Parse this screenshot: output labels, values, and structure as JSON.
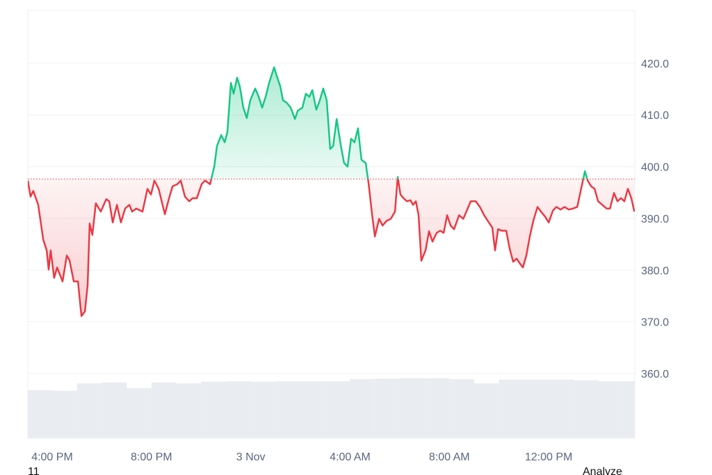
{
  "chart_data": {
    "type": "area",
    "x": [
      15.02,
      15.13,
      15.24,
      15.44,
      15.64,
      15.78,
      15.86,
      15.94,
      16.08,
      16.2,
      16.42,
      16.59,
      16.7,
      16.87,
      17.04,
      17.18,
      17.32,
      17.43,
      17.51,
      17.62,
      17.76,
      17.96,
      18.18,
      18.3,
      18.44,
      18.61,
      18.77,
      18.94,
      19.11,
      19.22,
      19.39,
      19.64,
      19.84,
      19.98,
      20.12,
      20.29,
      20.54,
      20.71,
      20.85,
      21.04,
      21.18,
      21.35,
      21.52,
      21.66,
      21.83,
      22.02,
      22.16,
      22.36,
      22.53,
      22.64,
      22.81,
      22.95,
      23.06,
      23.2,
      23.31,
      23.45,
      23.56,
      23.7,
      23.84,
      23.98,
      24.18,
      24.32,
      24.46,
      24.6,
      24.74,
      24.94,
      25.05,
      25.19,
      25.3,
      25.44,
      25.61,
      25.78,
      25.89,
      26.08,
      26.22,
      26.36,
      26.48,
      26.64,
      26.78,
      26.92,
      27.06,
      27.2,
      27.32,
      27.46,
      27.63,
      27.76,
      27.9,
      28.04,
      28.18,
      28.32,
      28.46,
      28.63,
      28.75,
      28.89,
      29.0,
      29.17,
      29.31,
      29.47,
      29.64,
      29.81,
      29.92,
      30.03,
      30.15,
      30.29,
      30.43,
      30.54,
      30.65,
      30.76,
      30.87,
      31.04,
      31.18,
      31.32,
      31.49,
      31.63,
      31.77,
      31.91,
      32.05,
      32.19,
      32.39,
      32.56,
      32.72,
      32.86,
      33.06,
      33.23,
      33.4,
      33.59,
      33.73,
      33.84,
      33.96,
      34.12,
      34.29,
      34.43,
      34.57,
      34.71,
      34.82,
      34.96,
      35.1,
      35.24,
      35.38,
      35.55,
      35.69,
      35.86,
      36.0,
      36.17,
      36.31,
      36.48,
      36.64,
      36.81,
      36.98,
      37.15,
      37.32,
      37.46,
      37.57,
      37.71,
      37.85,
      37.99,
      38.16,
      38.33,
      38.47,
      38.63,
      38.77,
      38.91,
      39.05,
      39.19,
      39.33,
      39.45
    ],
    "values": [
      397.3,
      394.2,
      395.3,
      392.6,
      385.9,
      383.8,
      380.1,
      383.8,
      378.5,
      380.5,
      377.8,
      382.8,
      381.9,
      377.8,
      377.8,
      371.1,
      372,
      377.1,
      389,
      386.8,
      392.9,
      391.3,
      393.7,
      393.3,
      389.2,
      392.6,
      389.2,
      391.9,
      392.6,
      391.3,
      391.9,
      391.3,
      395.7,
      394.6,
      397.3,
      395.7,
      390.8,
      393.9,
      396.2,
      396.6,
      397.3,
      394.2,
      393.3,
      393.9,
      393.9,
      396.6,
      397.3,
      396.6,
      400,
      404,
      406.1,
      404.7,
      406.7,
      416.2,
      414.1,
      417.2,
      415.5,
      411.4,
      409.4,
      412.8,
      415.1,
      413.5,
      411.4,
      413.5,
      416.2,
      419.2,
      417.5,
      415.5,
      412.8,
      412.4,
      411.4,
      409.2,
      410.8,
      411.4,
      414.1,
      413.5,
      414.8,
      411,
      412.8,
      415.1,
      412.8,
      403.4,
      404,
      409.2,
      404,
      400.7,
      400,
      405.4,
      404.7,
      407.4,
      401.3,
      400.7,
      396.6,
      390.6,
      386.5,
      389.9,
      388.6,
      389.5,
      389.9,
      391.3,
      398,
      394.6,
      393.9,
      393.3,
      393.5,
      392.6,
      393.3,
      390.6,
      381.8,
      383.8,
      387.5,
      385.5,
      387.2,
      387.6,
      387.2,
      390.6,
      388.6,
      387.9,
      390.6,
      389.9,
      391.7,
      393.3,
      393.3,
      392.2,
      390.6,
      389.2,
      388.2,
      383.8,
      387.9,
      387.6,
      387.6,
      384.1,
      381.6,
      382.2,
      381.4,
      380.5,
      382.8,
      386.5,
      389.5,
      392.2,
      391.3,
      390.3,
      389.2,
      391.5,
      392.2,
      391.7,
      392.2,
      391.7,
      391.9,
      392.2,
      396,
      399.1,
      397.3,
      396.2,
      395.7,
      393.3,
      392.6,
      391.9,
      391.9,
      394.9,
      393.3,
      393.9,
      393.3,
      395.7,
      393.9,
      391.3
    ],
    "baseline": 397.6,
    "up_color": "#16c784",
    "down_color": "#ea3943",
    "xlim": [
      15.02,
      39.47
    ],
    "ylim": [
      347.5,
      430.2
    ],
    "xticks": [
      {
        "value": 16,
        "label": "4:00 PM"
      },
      {
        "value": 20,
        "label": "8:00 PM"
      },
      {
        "value": 24,
        "label": "3 Nov"
      },
      {
        "value": 28,
        "label": "4:00 AM"
      },
      {
        "value": 32,
        "label": "8:00 AM"
      },
      {
        "value": 36,
        "label": "12:00 PM"
      }
    ],
    "yticks": [
      {
        "value": 360,
        "label": "360.0"
      },
      {
        "value": 370,
        "label": "370.0"
      },
      {
        "value": 380,
        "label": "380.0"
      },
      {
        "value": 390,
        "label": "390.0"
      },
      {
        "value": 400,
        "label": "400.0"
      },
      {
        "value": 410,
        "label": "410.0"
      },
      {
        "value": 420,
        "label": "420.0"
      }
    ],
    "grid": true,
    "volume": {
      "color": "#e9ecf0",
      "lim": [
        0,
        100
      ],
      "x": [
        15,
        16,
        17,
        18,
        19,
        20,
        21,
        22,
        23,
        24,
        25,
        26,
        27,
        28,
        29,
        30,
        31,
        32,
        33,
        34,
        35,
        36,
        37,
        38,
        39
      ],
      "values": [
        11.2,
        11.1,
        12.8,
        13.0,
        11.7,
        13.0,
        12.8,
        13.2,
        13.3,
        13.2,
        13.3,
        13.3,
        13.3,
        13.8,
        13.9,
        14.0,
        14.0,
        13.8,
        12.8,
        13.7,
        13.7,
        13.7,
        13.5,
        13.3,
        13.3
      ]
    }
  },
  "footer": {
    "left": "11",
    "right": "Analyze"
  }
}
